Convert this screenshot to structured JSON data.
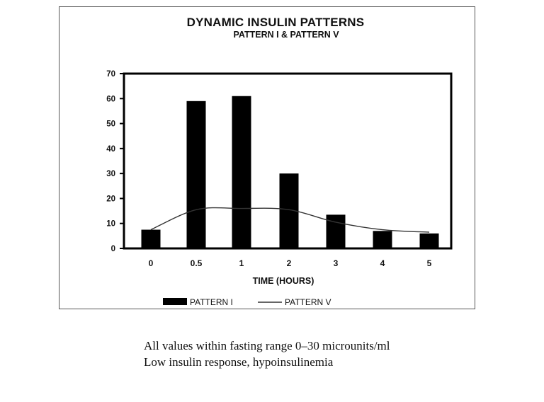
{
  "chart_data": {
    "type": "bar",
    "title": "DYNAMIC INSULIN PATTERNS",
    "subtitle": "PATTERN I & PATTERN V",
    "xlabel": "TIME (HOURS)",
    "ylabel": "",
    "categories": [
      "0",
      "0.5",
      "1",
      "2",
      "3",
      "4",
      "5"
    ],
    "ylim": [
      0,
      70
    ],
    "yticks": [
      0,
      10,
      20,
      30,
      40,
      50,
      60,
      70
    ],
    "grid": false,
    "legend_position": "bottom",
    "series": [
      {
        "name": "PATTERN I",
        "kind": "bar",
        "values": [
          7.5,
          59,
          61,
          30,
          13.5,
          7,
          6
        ]
      },
      {
        "name": "PATTERN V",
        "kind": "line",
        "values": [
          7.5,
          15.5,
          16,
          15.5,
          10.5,
          7.5,
          6.5
        ]
      }
    ]
  },
  "notes": [
    "All values within fasting range 0–30 microunits/ml",
    "Low insulin response, hypoinsulinemia"
  ],
  "colors": {
    "bars": "#000000",
    "line": "#333333",
    "frame": "#555555"
  }
}
